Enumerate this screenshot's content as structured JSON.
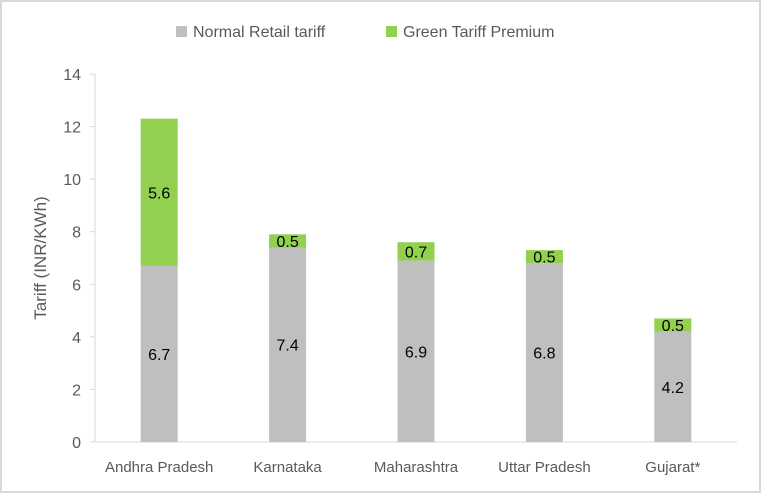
{
  "chart_data": {
    "type": "bar",
    "stacked": true,
    "title": "",
    "xlabel": "",
    "ylabel": "Tariff (INR/KWh)",
    "ylim": [
      0,
      14
    ],
    "yticks": [
      0,
      2,
      4,
      6,
      8,
      10,
      12,
      14
    ],
    "grid": false,
    "legend_position": "top",
    "categories": [
      "Andhra Pradesh",
      "Karnataka",
      "Maharashtra",
      "Uttar Pradesh",
      "Gujarat*"
    ],
    "series": [
      {
        "name": "Normal Retail tariff",
        "color": "#bfbfbf",
        "values": [
          6.7,
          7.4,
          6.9,
          6.8,
          4.2
        ]
      },
      {
        "name": "Green Tariff Premium",
        "color": "#92d050",
        "values": [
          5.6,
          0.5,
          0.7,
          0.5,
          0.5
        ]
      }
    ]
  }
}
